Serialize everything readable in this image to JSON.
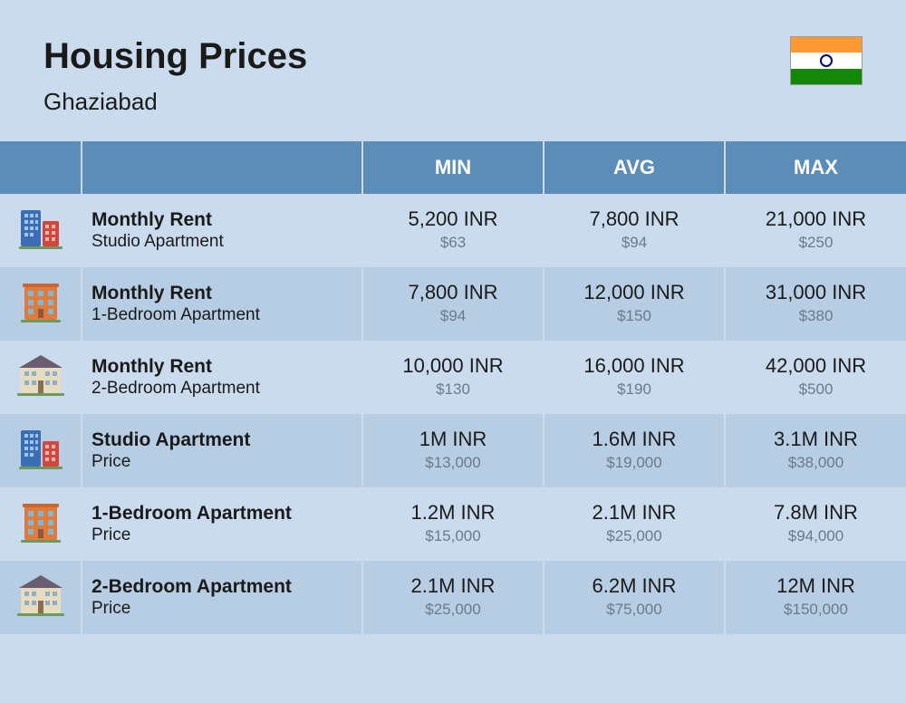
{
  "header": {
    "title": "Housing Prices",
    "city": "Ghaziabad",
    "flag_colors": {
      "saffron": "#ff9933",
      "white": "#ffffff",
      "green": "#138808",
      "chakra": "#000080"
    }
  },
  "columns": {
    "min": "MIN",
    "avg": "AVG",
    "max": "MAX"
  },
  "rows": [
    {
      "icon": "building-blue-red",
      "label_main": "Monthly Rent",
      "label_sub": "Studio Apartment",
      "min": {
        "inr": "5,200 INR",
        "usd": "$63"
      },
      "avg": {
        "inr": "7,800 INR",
        "usd": "$94"
      },
      "max": {
        "inr": "21,000 INR",
        "usd": "$250"
      }
    },
    {
      "icon": "building-orange",
      "label_main": "Monthly Rent",
      "label_sub": "1-Bedroom Apartment",
      "min": {
        "inr": "7,800 INR",
        "usd": "$94"
      },
      "avg": {
        "inr": "12,000 INR",
        "usd": "$150"
      },
      "max": {
        "inr": "31,000 INR",
        "usd": "$380"
      }
    },
    {
      "icon": "building-beige",
      "label_main": "Monthly Rent",
      "label_sub": "2-Bedroom Apartment",
      "min": {
        "inr": "10,000 INR",
        "usd": "$130"
      },
      "avg": {
        "inr": "16,000 INR",
        "usd": "$190"
      },
      "max": {
        "inr": "42,000 INR",
        "usd": "$500"
      }
    },
    {
      "icon": "building-blue-red",
      "label_main": "Studio Apartment",
      "label_sub": "Price",
      "min": {
        "inr": "1M INR",
        "usd": "$13,000"
      },
      "avg": {
        "inr": "1.6M INR",
        "usd": "$19,000"
      },
      "max": {
        "inr": "3.1M INR",
        "usd": "$38,000"
      }
    },
    {
      "icon": "building-orange",
      "label_main": "1-Bedroom Apartment",
      "label_sub": "Price",
      "min": {
        "inr": "1.2M INR",
        "usd": "$15,000"
      },
      "avg": {
        "inr": "2.1M INR",
        "usd": "$25,000"
      },
      "max": {
        "inr": "7.8M INR",
        "usd": "$94,000"
      }
    },
    {
      "icon": "building-beige",
      "label_main": "2-Bedroom Apartment",
      "label_sub": "Price",
      "min": {
        "inr": "2.1M INR",
        "usd": "$25,000"
      },
      "avg": {
        "inr": "6.2M INR",
        "usd": "$75,000"
      },
      "max": {
        "inr": "12M INR",
        "usd": "$150,000"
      }
    }
  ],
  "colors": {
    "header_bg": "#5b8db8",
    "row_even": "#b6cde3",
    "row_odd": "#c9dbed",
    "page_bg": "#c9dbed",
    "text_primary": "#1a1a1a",
    "text_secondary": "#6b7a8a"
  }
}
